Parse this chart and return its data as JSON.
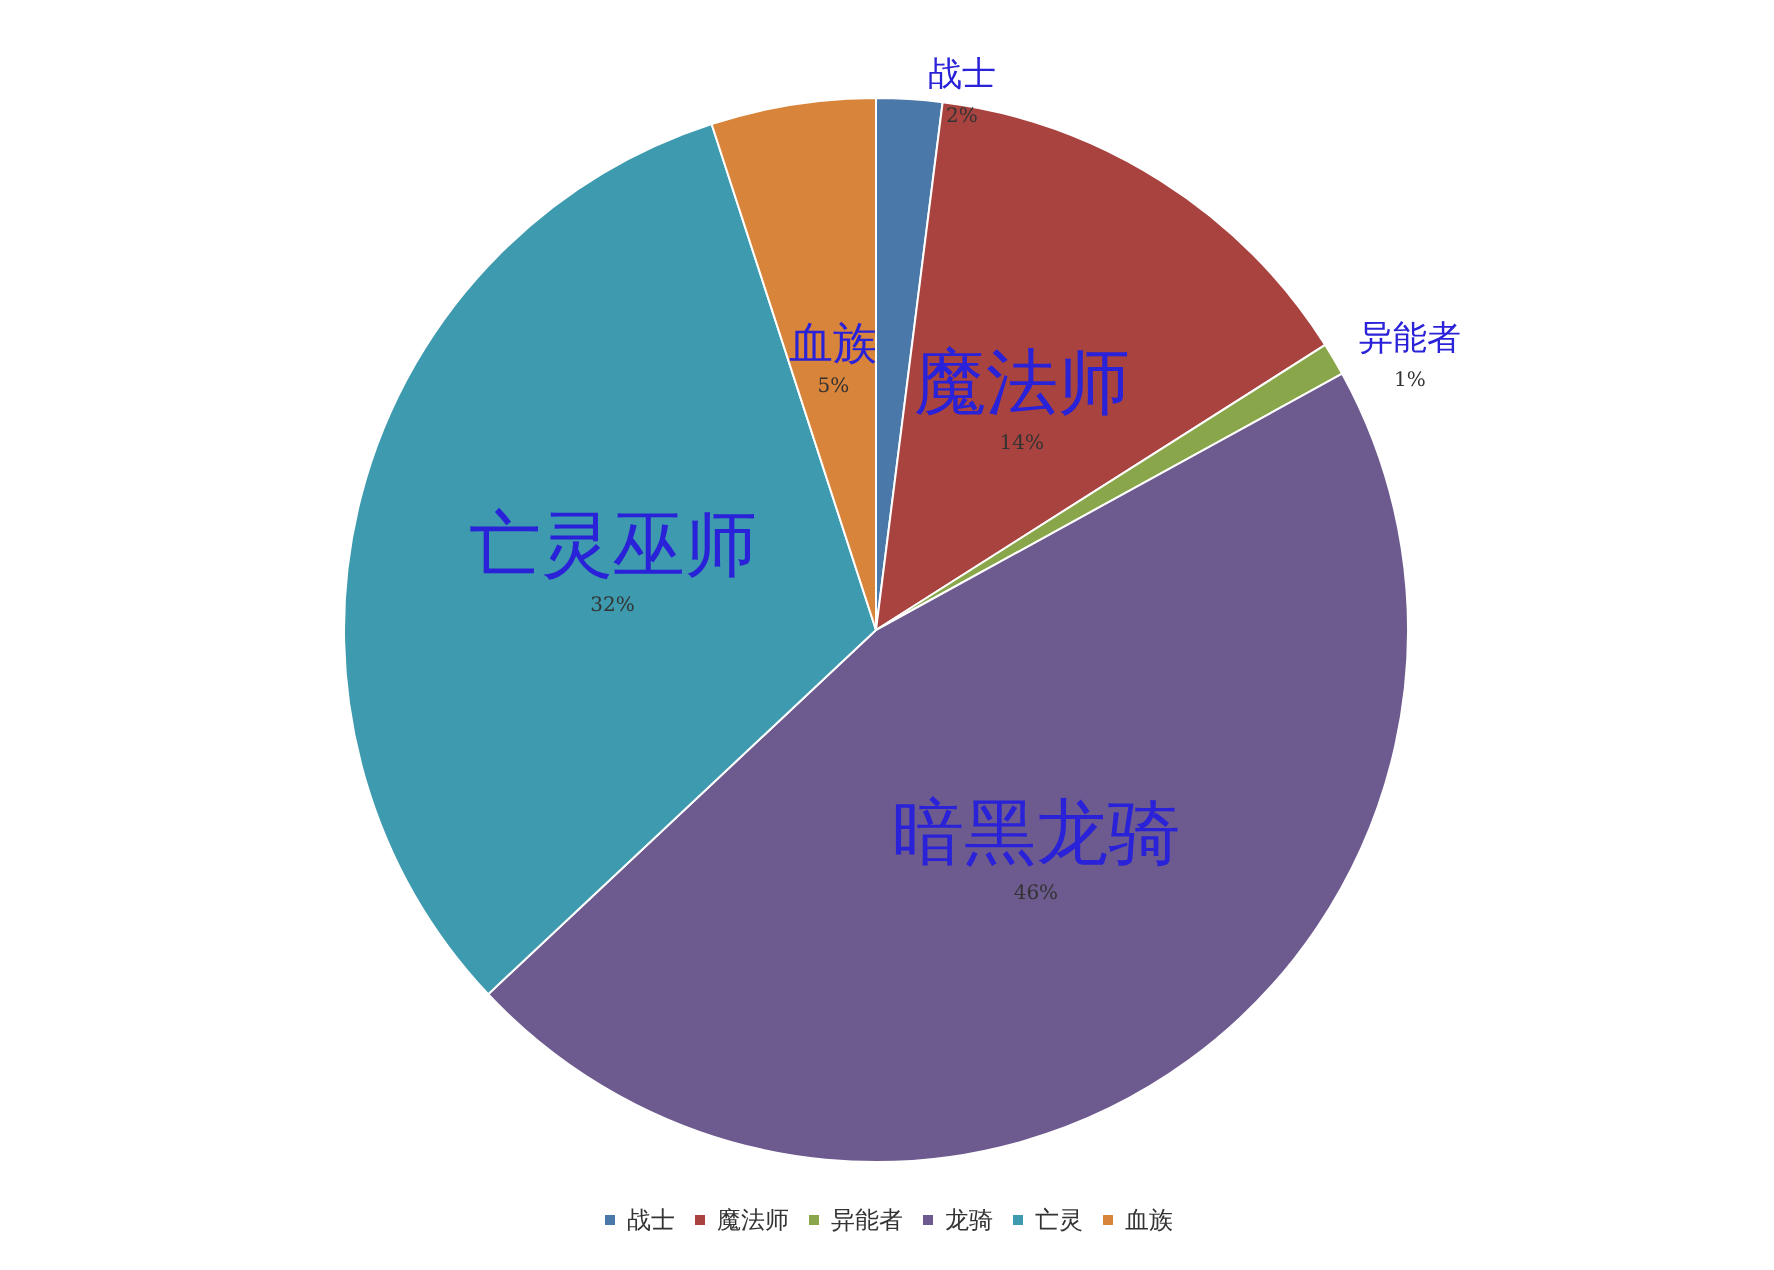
{
  "chart_data": {
    "type": "pie",
    "categories": [
      "战士",
      "魔法师",
      "异能者",
      "龙骑",
      "亡灵",
      "血族"
    ],
    "values": [
      2,
      14,
      1,
      46,
      32,
      5
    ],
    "value_labels": [
      "2%",
      "14%",
      "1%",
      "46%",
      "32%",
      "5%"
    ],
    "colors": [
      "#4a78a8",
      "#a8433f",
      "#8aa64a",
      "#6d5a8f",
      "#3e9aae",
      "#d8843a"
    ],
    "annotations": [
      {
        "text": "战士",
        "x": "战士"
      },
      {
        "text": "魔法师",
        "x": "魔法师"
      },
      {
        "text": "异能者",
        "x": "异能者"
      },
      {
        "text": "暗黑龙骑",
        "x": "龙骑"
      },
      {
        "text": "亡灵巫师",
        "x": "亡灵"
      },
      {
        "text": "血族",
        "x": "血族"
      }
    ],
    "legend": "bottom"
  }
}
